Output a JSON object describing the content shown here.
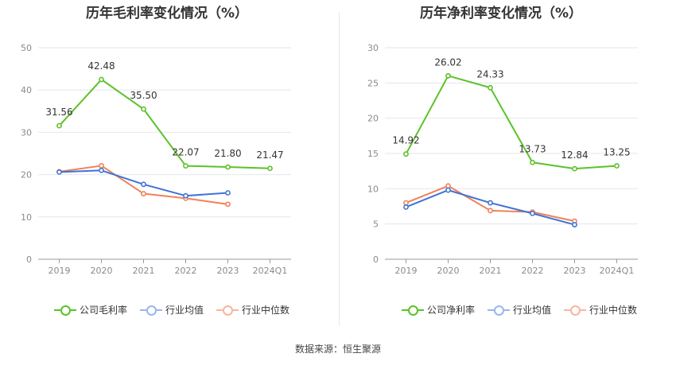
{
  "source": "数据来源：恒生聚源",
  "colors": {
    "company": "#5cc22a",
    "avg": "#3e74d6",
    "median": "#f08158"
  },
  "chart_data": [
    {
      "type": "line",
      "title": "历年毛利率变化情况（%）",
      "categories": [
        "2019",
        "2020",
        "2021",
        "2022",
        "2023",
        "2024Q1"
      ],
      "ylim": [
        0,
        50
      ],
      "yticks": [
        0,
        10,
        20,
        30,
        40,
        50
      ],
      "series": [
        {
          "name": "公司毛利率",
          "key": "company",
          "values": [
            31.56,
            42.48,
            35.5,
            22.07,
            21.8,
            21.47
          ],
          "labels": [
            "31.56",
            "42.48",
            "35.50",
            "22.07",
            "21.80",
            "21.47"
          ]
        },
        {
          "name": "行业均值",
          "key": "avg",
          "values": [
            20.6,
            21.0,
            17.7,
            15.0,
            15.7,
            null
          ]
        },
        {
          "name": "行业中位数",
          "key": "median",
          "values": [
            20.7,
            22.1,
            15.5,
            14.4,
            13.0,
            null
          ]
        }
      ]
    },
    {
      "type": "line",
      "title": "历年净利率变化情况（%）",
      "categories": [
        "2019",
        "2020",
        "2021",
        "2022",
        "2023",
        "2024Q1"
      ],
      "ylim": [
        0,
        30
      ],
      "yticks": [
        0,
        5,
        10,
        15,
        20,
        25,
        30
      ],
      "series": [
        {
          "name": "公司净利率",
          "key": "company",
          "values": [
            14.92,
            26.02,
            24.33,
            13.73,
            12.84,
            13.25
          ],
          "labels": [
            "14.92",
            "26.02",
            "24.33",
            "13.73",
            "12.84",
            "13.25"
          ]
        },
        {
          "name": "行业均值",
          "key": "avg",
          "values": [
            7.4,
            9.8,
            8.0,
            6.5,
            4.9,
            null
          ]
        },
        {
          "name": "行业中位数",
          "key": "median",
          "values": [
            8.0,
            10.4,
            6.9,
            6.7,
            5.4,
            null
          ]
        }
      ]
    }
  ]
}
